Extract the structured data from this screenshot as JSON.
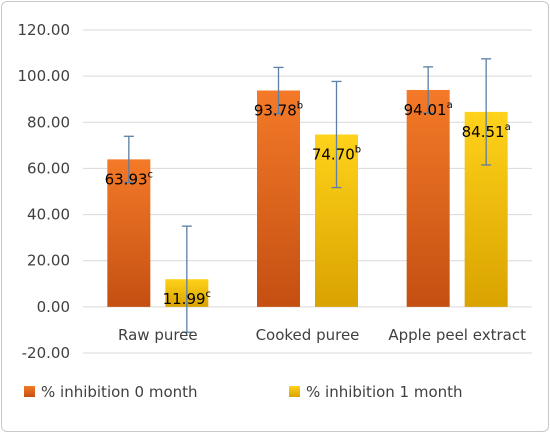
{
  "chart_data": {
    "type": "bar",
    "categories": [
      "Raw puree",
      "Cooked puree",
      "Apple peel extract"
    ],
    "series": [
      {
        "name": "% inhibition 0 month",
        "values": [
          63.93,
          93.78,
          94.01
        ],
        "errors": [
          10,
          10,
          10
        ],
        "labels": [
          "63.93",
          "93.78",
          "94.01"
        ],
        "letters": [
          "c",
          "b",
          "a"
        ],
        "color_top": "#F47A28",
        "color_bottom": "#C44F12"
      },
      {
        "name": "% inhibition  1 month",
        "values": [
          11.99,
          74.7,
          84.51
        ],
        "errors": [
          23,
          23,
          23
        ],
        "labels": [
          "11.99",
          "74.70",
          "84.51"
        ],
        "letters": [
          "c",
          "b",
          "a"
        ],
        "color_top": "#FFD21A",
        "color_bottom": "#D9A300"
      }
    ],
    "yticks": [
      "120.00",
      "100.00",
      "80.00",
      "60.00",
      "40.00",
      "20.00",
      "0.00",
      "-20.00"
    ],
    "ylim": [
      -20,
      120
    ],
    "grid": true,
    "legend_position": "bottom-left",
    "error_bar_color": "#5B7FA6",
    "grid_color": "#D9D9D9"
  }
}
